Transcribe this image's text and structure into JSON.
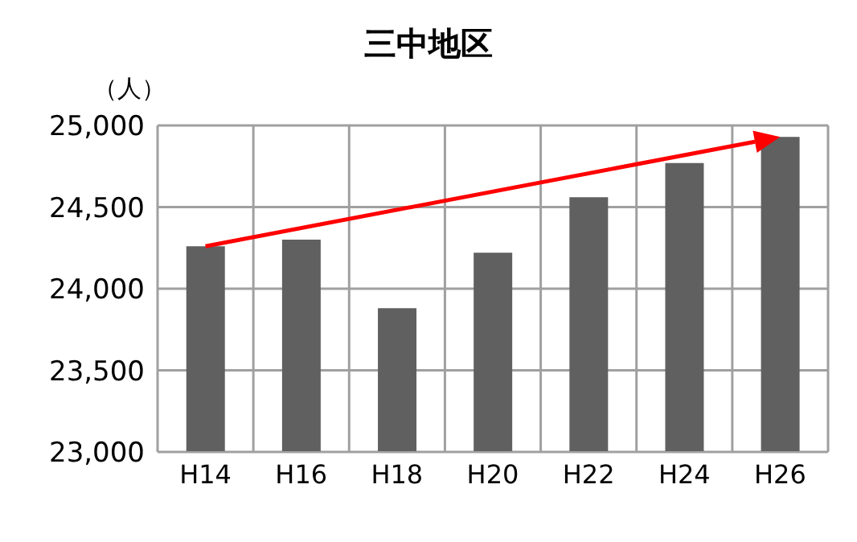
{
  "chart_data": {
    "type": "bar",
    "title": "三中地区",
    "ylabel": "（人）",
    "categories": [
      "H14",
      "H16",
      "H18",
      "H20",
      "H22",
      "H24",
      "H26"
    ],
    "values": [
      24260,
      24300,
      23880,
      24220,
      24560,
      24770,
      24930
    ],
    "color": "#606060",
    "ylim": [
      23000,
      25000
    ],
    "yticks": [
      {
        "value": 23000,
        "label": "23,000"
      },
      {
        "value": 23500,
        "label": "23,500"
      },
      {
        "value": 24000,
        "label": "24,000"
      },
      {
        "value": 24500,
        "label": "24,500"
      },
      {
        "value": 25000,
        "label": "25,000"
      }
    ],
    "grid": true
  }
}
